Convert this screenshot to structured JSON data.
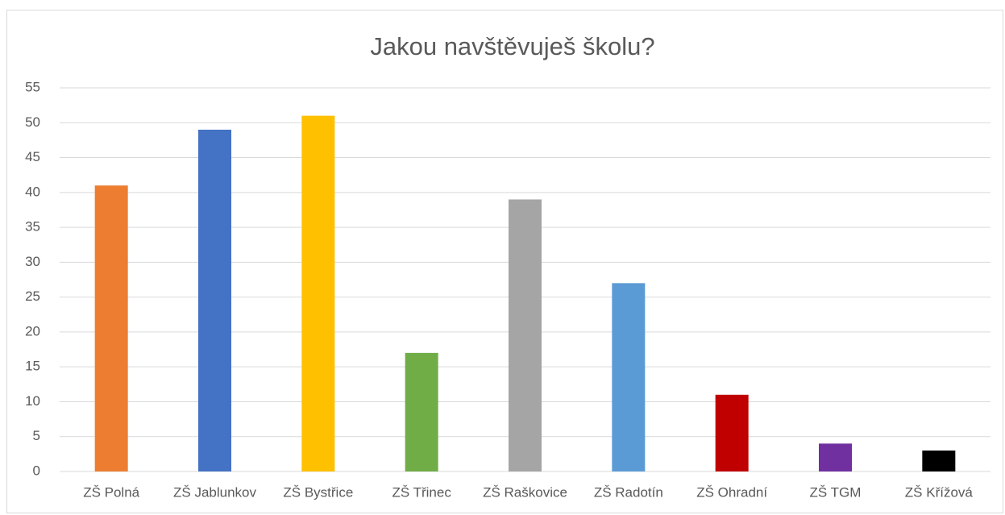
{
  "chart_data": {
    "type": "bar",
    "title": "Jakou navštěvuješ školu?",
    "categories": [
      "ZŠ Polná",
      "ZŠ Jablunkov",
      "ZŠ Bystřice",
      "ZŠ Třinec",
      "ZŠ Raškovice",
      "ZŠ Radotín",
      "ZŠ Ohradní",
      "ZŠ TGM",
      "ZŠ Křížová"
    ],
    "values": [
      41,
      49,
      51,
      17,
      39,
      27,
      11,
      4,
      3
    ],
    "colors": [
      "#ed7d31",
      "#4472c4",
      "#ffc000",
      "#70ad47",
      "#a5a5a5",
      "#5b9bd5",
      "#c00000",
      "#7030a0",
      "#000000"
    ],
    "ylim": [
      0,
      55
    ],
    "yticks": [
      0,
      5,
      10,
      15,
      20,
      25,
      30,
      35,
      40,
      45,
      50,
      55
    ],
    "grid": true
  }
}
